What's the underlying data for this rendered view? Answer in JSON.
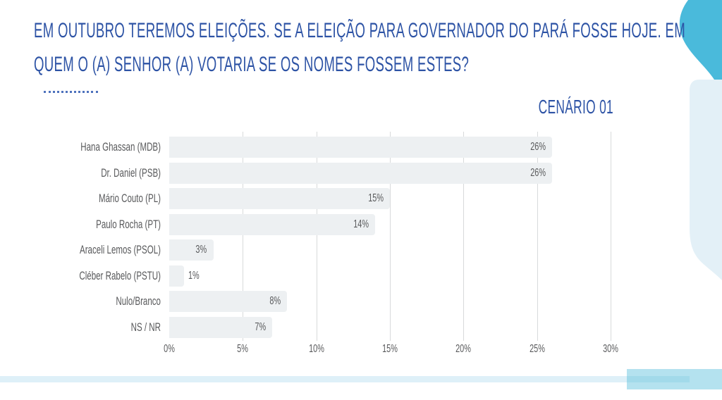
{
  "slide": {
    "title_lines": [
      "EM OUTUBRO TEREMOS ELEIÇÕES. SE A ELEIÇÃO PARA GOVERNADOR DO PARÁ FOSSE HOJE. EM",
      "QUEM O (A) SENHOR (A) VOTARIA SE OS NOMES FOSSEM ESTES?"
    ],
    "scenario_label": "CENÁRIO 01"
  },
  "chart_data": {
    "type": "bar",
    "orientation": "horizontal",
    "title": "CENÁRIO 01",
    "categories": [
      "Hana Ghassan (MDB)",
      "Dr. Daniel (PSB)",
      "Mário Couto (PL)",
      "Paulo Rocha (PT)",
      "Araceli Lemos (PSOL)",
      "Cléber Rabelo (PSTU)",
      "Nulo/Branco",
      "NS / NR"
    ],
    "values": [
      26,
      26,
      15,
      14,
      3,
      1,
      8,
      7
    ],
    "value_labels": [
      "26%",
      "26%",
      "15%",
      "14%",
      "3%",
      "1%",
      "8%",
      "7%"
    ],
    "x_ticks": [
      "0%",
      "5%",
      "10%",
      "15%",
      "20%",
      "25%",
      "30%"
    ],
    "x_tick_values": [
      0,
      5,
      10,
      15,
      20,
      25,
      30
    ],
    "xlim": [
      0,
      30
    ],
    "grid": true,
    "legend": false,
    "label_outside_threshold": 2
  },
  "colors": {
    "title-blue": "#2D53A5",
    "dotted-blue": "#4E72BD",
    "text-gray": "#58595B",
    "bar-fill": "#EDF0F2",
    "gridline": "#D8DADB",
    "teal-blob": "#4ABADB",
    "light-panel": "#E3F0F7",
    "strip-light": "#DEF0F8",
    "strip-medium": "#B4E2EF",
    "strip-dark": "#A2DAEA"
  }
}
